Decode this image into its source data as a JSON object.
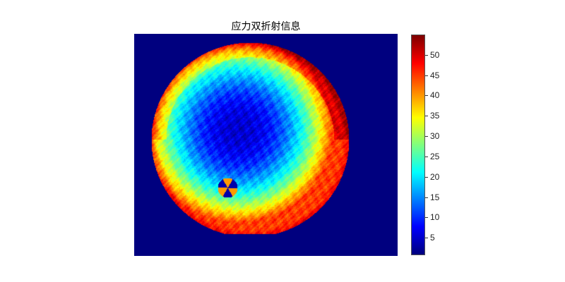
{
  "chart_data": {
    "type": "heatmap",
    "title": "应力双折射信息",
    "colormap": "jet",
    "colorbar": {
      "range": [
        0.7,
        55
      ],
      "ticks": [
        5,
        10,
        15,
        20,
        25,
        30,
        35,
        40,
        45,
        50
      ],
      "tick_labels": [
        "5",
        "10",
        "15",
        "20",
        "25",
        "30",
        "35",
        "40",
        "45",
        "50"
      ]
    },
    "description_values": {
      "center_value": 5,
      "edge_value": 45,
      "background_value": 0.7
    }
  }
}
